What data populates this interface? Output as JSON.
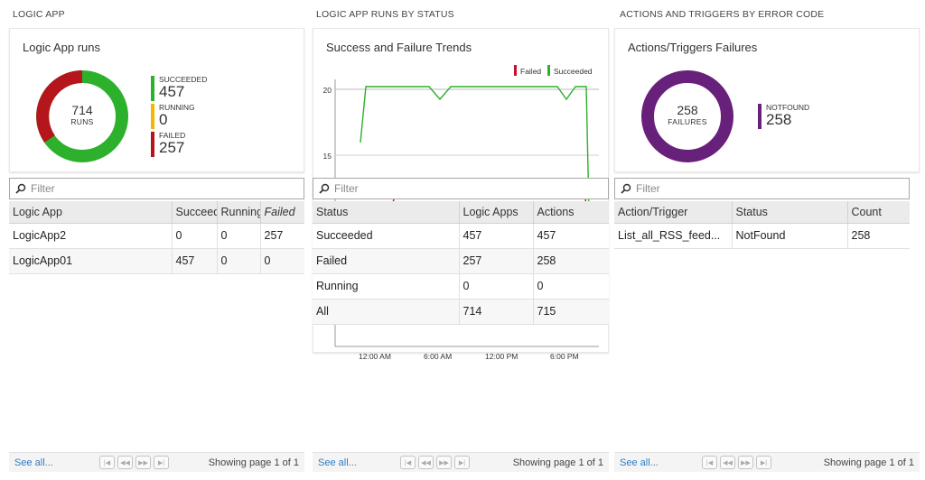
{
  "panels": {
    "logic_app": {
      "section_title": "LOGIC APP",
      "card_title": "Logic App runs",
      "donut": {
        "value": "714",
        "label": "RUNS"
      },
      "legend": [
        {
          "name": "SUCCEEDED",
          "value": "457",
          "color": "#2db12d"
        },
        {
          "name": "RUNNING",
          "value": "0",
          "color": "#f2b800"
        },
        {
          "name": "FAILED",
          "value": "257",
          "color": "#b5161b"
        }
      ],
      "filter_placeholder": "Filter",
      "columns": [
        "Logic App",
        "Succeeded",
        "Running",
        "Failed"
      ],
      "rows": [
        [
          "LogicApp2",
          "0",
          "0",
          "257"
        ],
        [
          "LogicApp01",
          "457",
          "0",
          "0"
        ]
      ],
      "footer": {
        "see_all": "See all...",
        "showing": "Showing page 1 of 1"
      }
    },
    "runs_by_status": {
      "section_title": "LOGIC APP RUNS BY STATUS",
      "card_title": "Success and Failure Trends",
      "chart_data": {
        "type": "line",
        "title": "Success and Failure Trends",
        "legend": [
          "Failed",
          "Succeeded"
        ],
        "legend_placement": "top-right",
        "x_ticks": [
          "12:00 AM",
          "6:00 AM",
          "12:00 PM",
          "6:00 PM"
        ],
        "y_ticks": [
          "20",
          "15"
        ],
        "series": [
          {
            "name": "Succeeded",
            "color": "#2db12d"
          },
          {
            "name": "Failed",
            "color": "#c8102e"
          }
        ]
      },
      "filter_placeholder": "Filter",
      "columns": [
        "Status",
        "Logic Apps",
        "Actions"
      ],
      "rows": [
        [
          "Succeeded",
          "457",
          "457"
        ],
        [
          "Failed",
          "257",
          "258"
        ],
        [
          "Running",
          "0",
          "0"
        ],
        [
          "All",
          "714",
          "715"
        ]
      ],
      "footer": {
        "see_all": "See all...",
        "showing": "Showing page 1 of 1"
      }
    },
    "errors": {
      "section_title": "ACTIONS AND TRIGGERS BY ERROR CODE",
      "card_title": "Actions/Triggers Failures",
      "donut": {
        "value": "258",
        "label": "FAILURES"
      },
      "legend": [
        {
          "name": "NOTFOUND",
          "value": "258",
          "color": "#68217a"
        }
      ],
      "filter_placeholder": "Filter",
      "columns": [
        "Action/Trigger",
        "Status",
        "Count"
      ],
      "rows": [
        [
          "List_all_RSS_feed...",
          "NotFound",
          "258"
        ]
      ],
      "footer": {
        "see_all": "See all...",
        "showing": "Showing page 1 of 1"
      }
    }
  }
}
